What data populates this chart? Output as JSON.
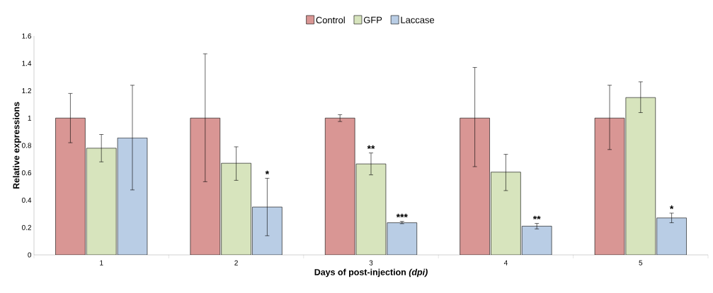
{
  "chart_data": {
    "type": "bar",
    "xlabel": "Days of post-injection *(dpi)*",
    "ylabel": "Relative expressions",
    "categories": [
      "1",
      "2",
      "3",
      "4",
      "5"
    ],
    "series": [
      {
        "name": "Control",
        "color": "#d99694",
        "values": [
          1,
          1,
          1,
          1,
          1
        ],
        "errors": [
          [
            0.82,
            1.18
          ],
          [
            0.535,
            1.47
          ],
          [
            0.975,
            1.025
          ],
          [
            0.645,
            1.37
          ],
          [
            0.77,
            1.24
          ]
        ]
      },
      {
        "name": "GFP",
        "color": "#d7e4bd",
        "values": [
          0.78,
          0.67,
          0.665,
          0.605,
          1.15
        ],
        "errors": [
          [
            0.68,
            0.88
          ],
          [
            0.545,
            0.79
          ],
          [
            0.585,
            0.745
          ],
          [
            0.47,
            0.735
          ],
          [
            1.04,
            1.265
          ]
        ]
      },
      {
        "name": "Laccase",
        "color": "#b9cde5",
        "values": [
          0.855,
          0.35,
          0.235,
          0.21,
          0.27
        ],
        "errors": [
          [
            0.475,
            1.24
          ],
          [
            0.14,
            0.56
          ],
          [
            0.228,
            0.245
          ],
          [
            0.19,
            0.23
          ],
          [
            0.235,
            0.305
          ]
        ]
      }
    ],
    "annotations": [
      "*",
      "**",
      "***",
      "**",
      "*"
    ],
    "ylim": [
      0,
      1.6
    ],
    "yticks": [
      0,
      0.2,
      0.4,
      0.6,
      0.8,
      1,
      1.2,
      1.4,
      1.6
    ],
    "grid": false,
    "legend": "top"
  }
}
